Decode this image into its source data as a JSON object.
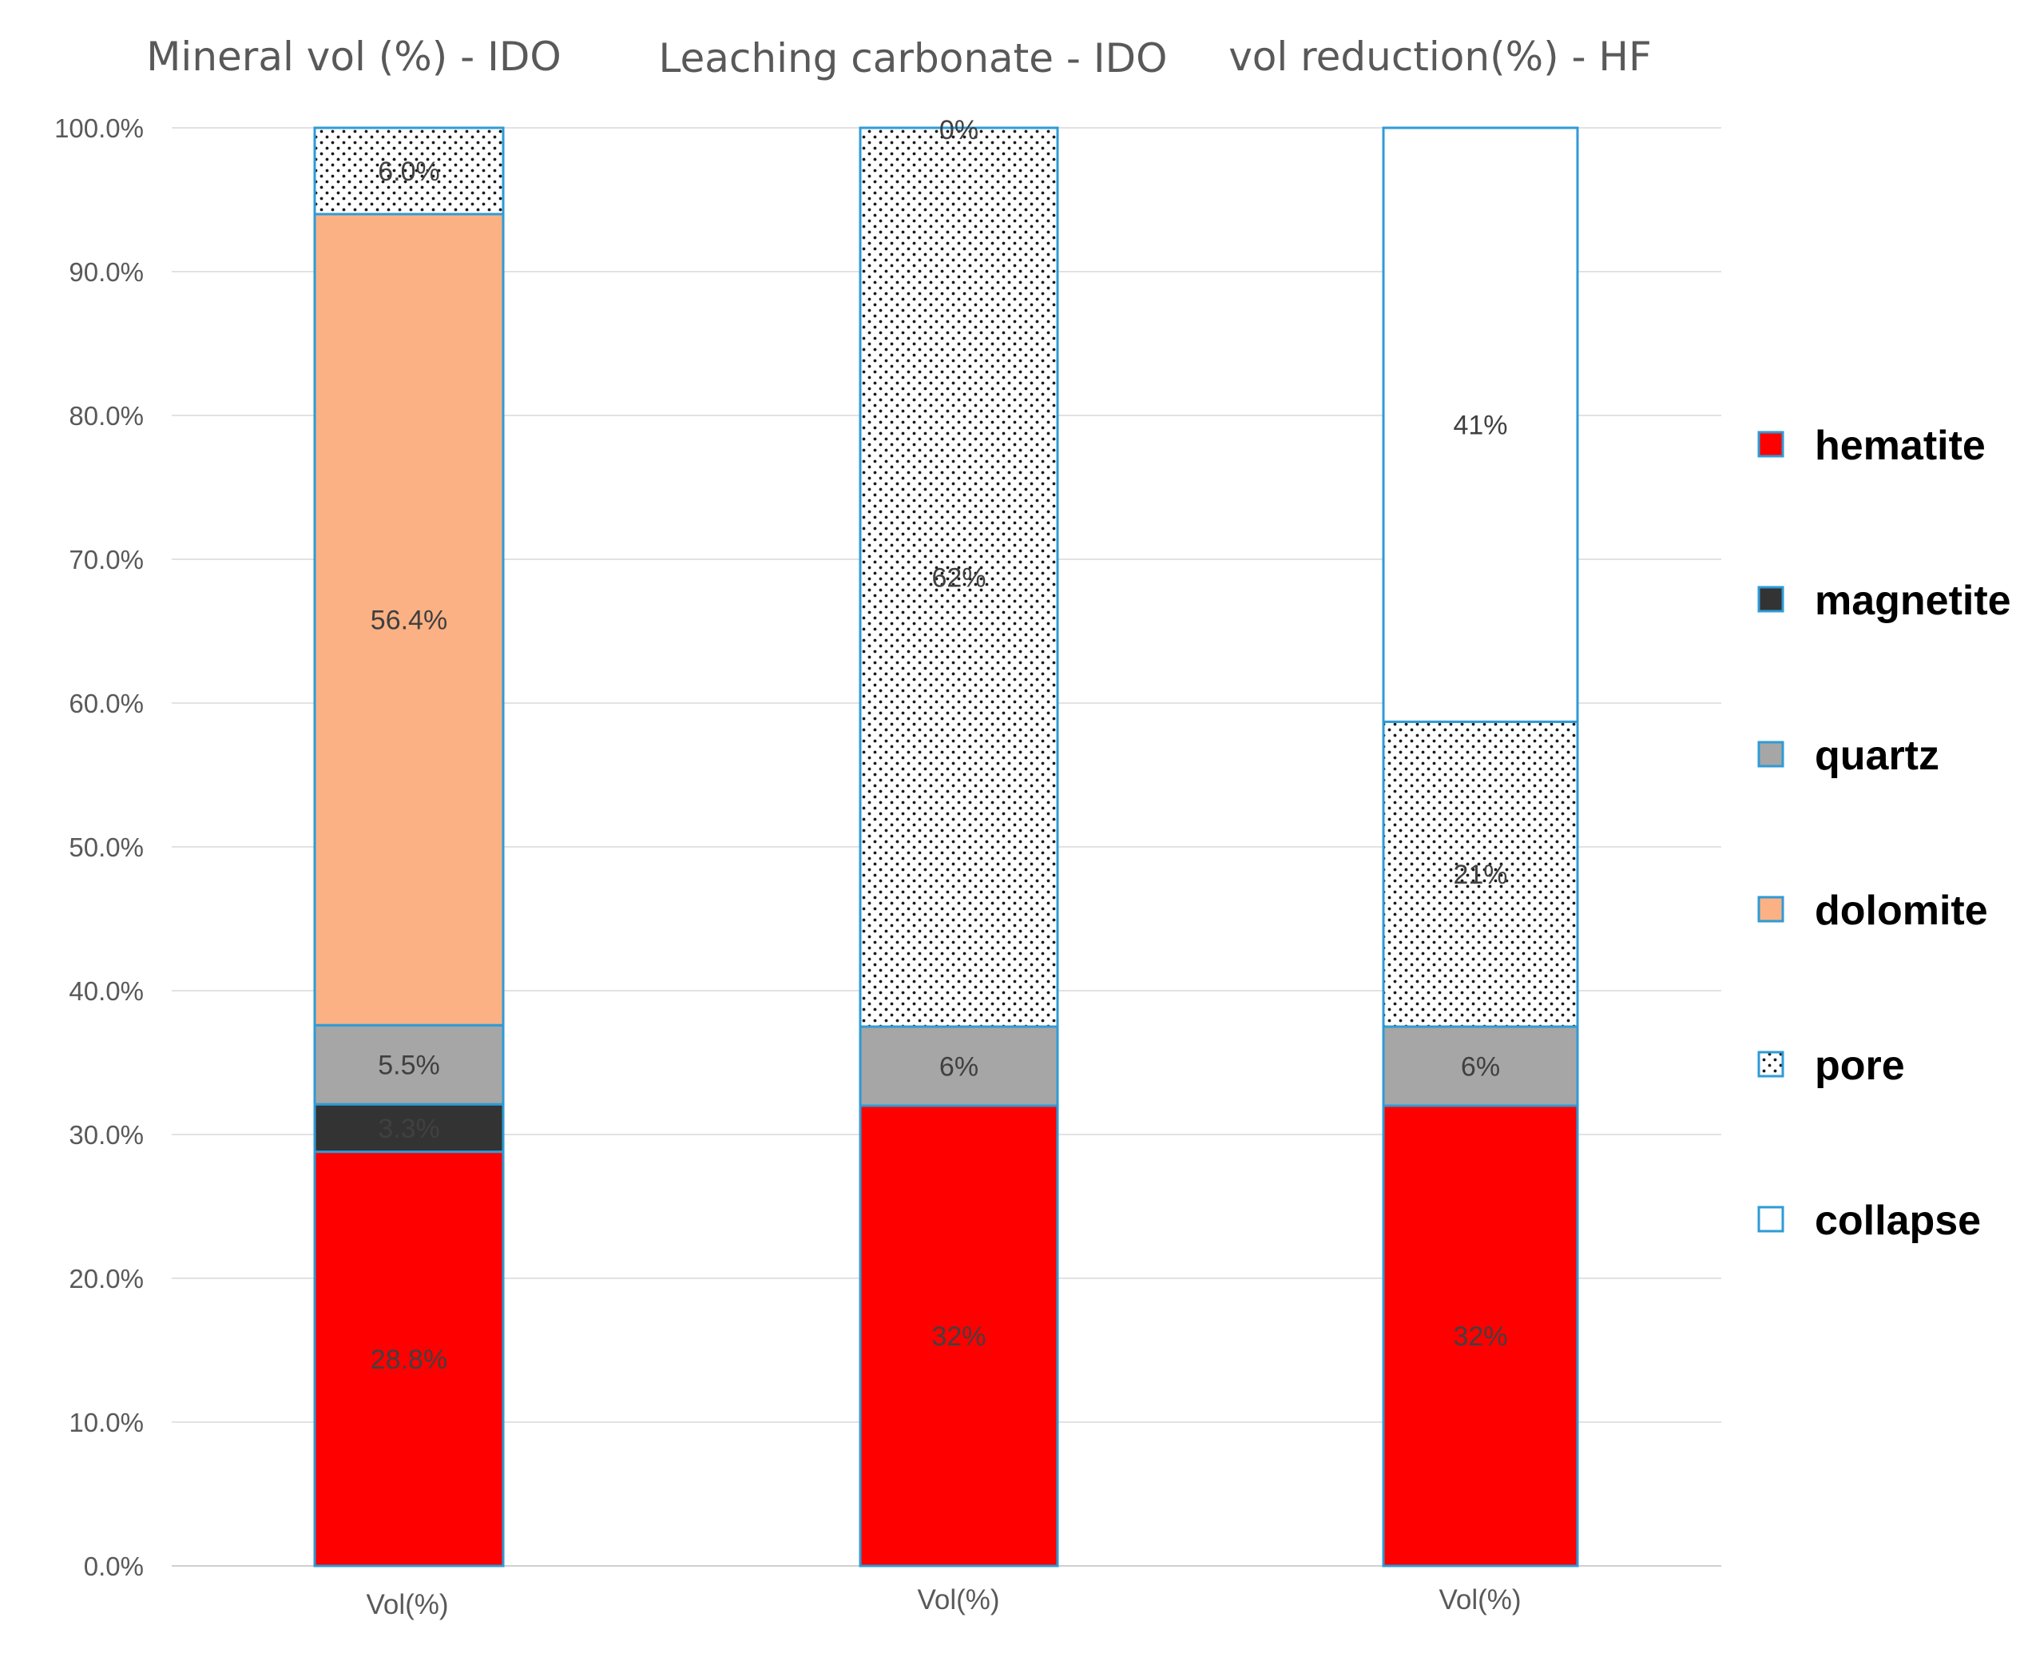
{
  "chart_data": {
    "type": "bar",
    "stacked": true,
    "ylim": [
      0,
      100
    ],
    "yticks": [
      "0.0%",
      "10.0%",
      "20.0%",
      "30.0%",
      "40.0%",
      "50.0%",
      "60.0%",
      "70.0%",
      "80.0%",
      "90.0%",
      "100.0%"
    ],
    "grid": true,
    "legend_position": "right",
    "series_order": [
      "hematite",
      "magnetite",
      "quartz",
      "dolomite",
      "pore",
      "collapse"
    ],
    "series_styles": {
      "hematite": {
        "fill": "#ff0000",
        "pattern": "solid"
      },
      "magnetite": {
        "fill": "#333333",
        "pattern": "solid"
      },
      "quartz": {
        "fill": "#a6a6a6",
        "pattern": "solid"
      },
      "dolomite": {
        "fill": "#fbb184",
        "pattern": "solid"
      },
      "pore": {
        "fill": "#ffffff",
        "pattern": "dots"
      },
      "collapse": {
        "fill": "#ffffff",
        "pattern": "solid"
      }
    },
    "colors": {
      "border": "#2e9bd6",
      "grid": "#e2e2e2",
      "text": "#595959"
    },
    "legend": [
      "hematite",
      "magnetite",
      "quartz",
      "dolomite",
      "pore",
      "collapse"
    ],
    "charts": [
      {
        "title": "Mineral vol (%) - IDO",
        "category": "Vol(%)",
        "segments": [
          {
            "series": "hematite",
            "value": 28.8,
            "label": "28.8%"
          },
          {
            "series": "magnetite",
            "value": 3.3,
            "label": "3.3%"
          },
          {
            "series": "quartz",
            "value": 5.5,
            "label": "5.5%"
          },
          {
            "series": "dolomite",
            "value": 56.4,
            "label": "56.4%"
          },
          {
            "series": "pore",
            "value": 6.0,
            "label": "6.0%"
          }
        ]
      },
      {
        "title": "Leaching carbonate - IDO",
        "category": "Vol(%)",
        "segments": [
          {
            "series": "hematite",
            "value": 32,
            "label": "32%"
          },
          {
            "series": "quartz",
            "value": 5.5,
            "label": "6%"
          },
          {
            "series": "pore",
            "value": 62.5,
            "label": "62%"
          },
          {
            "series": "collapse",
            "value": 0,
            "label": "0%"
          }
        ]
      },
      {
        "title": "vol reduction(%) - HF",
        "category": "Vol(%)",
        "segments": [
          {
            "series": "hematite",
            "value": 32,
            "label": "32%"
          },
          {
            "series": "quartz",
            "value": 5.5,
            "label": "6%"
          },
          {
            "series": "pore",
            "value": 21.2,
            "label": "21%"
          },
          {
            "series": "collapse",
            "value": 41.3,
            "label": "41%"
          }
        ]
      }
    ]
  }
}
